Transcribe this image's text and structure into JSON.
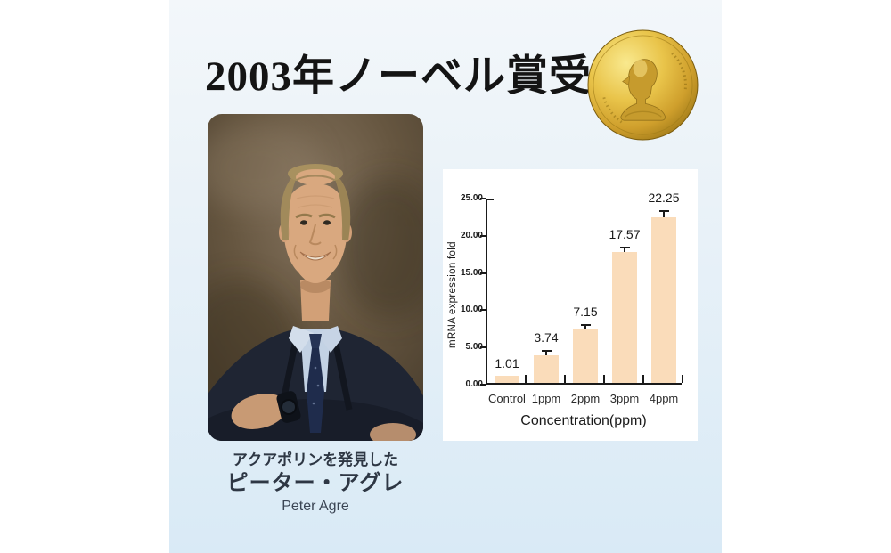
{
  "header": {
    "title": "2003年ノーベル賞受賞"
  },
  "medal_icon": "nobel-prize-medal",
  "portrait": {
    "image_name": "peter-agre-portrait-photo",
    "caption_role": "アクアポリンを発見した",
    "caption_name_ja": "ピーター・アグレ",
    "caption_name_en": "Peter Agre"
  },
  "chart_data": {
    "type": "bar",
    "title": "",
    "categories": [
      "Control",
      "1ppm",
      "2ppm",
      "3ppm",
      "4ppm"
    ],
    "values": [
      1.01,
      3.74,
      7.15,
      17.57,
      22.25
    ],
    "value_labels": [
      "1.01",
      "3.74",
      "7.15",
      "17.57",
      "22.25"
    ],
    "errors": [
      0,
      0.7,
      0.7,
      0.7,
      0.9
    ],
    "xlabel": "Concentration(ppm)",
    "ylabel": "mRNA expression fold",
    "ylim": [
      0,
      25
    ],
    "ytick_labels": [
      "0.00",
      "5.00",
      "10.00",
      "15.00",
      "20.00",
      "25.00"
    ],
    "grid": false,
    "legend": false,
    "bar_color": "#fadcba",
    "axis_color": "#1a1a1a"
  },
  "colors": {
    "page_bg": "#ffffff",
    "band_top": "#f3f7fa",
    "band_bottom": "#d9eaf6",
    "title_text": "#141414",
    "caption_text": "#2e3744",
    "chart_panel_bg": "#ffffff"
  }
}
